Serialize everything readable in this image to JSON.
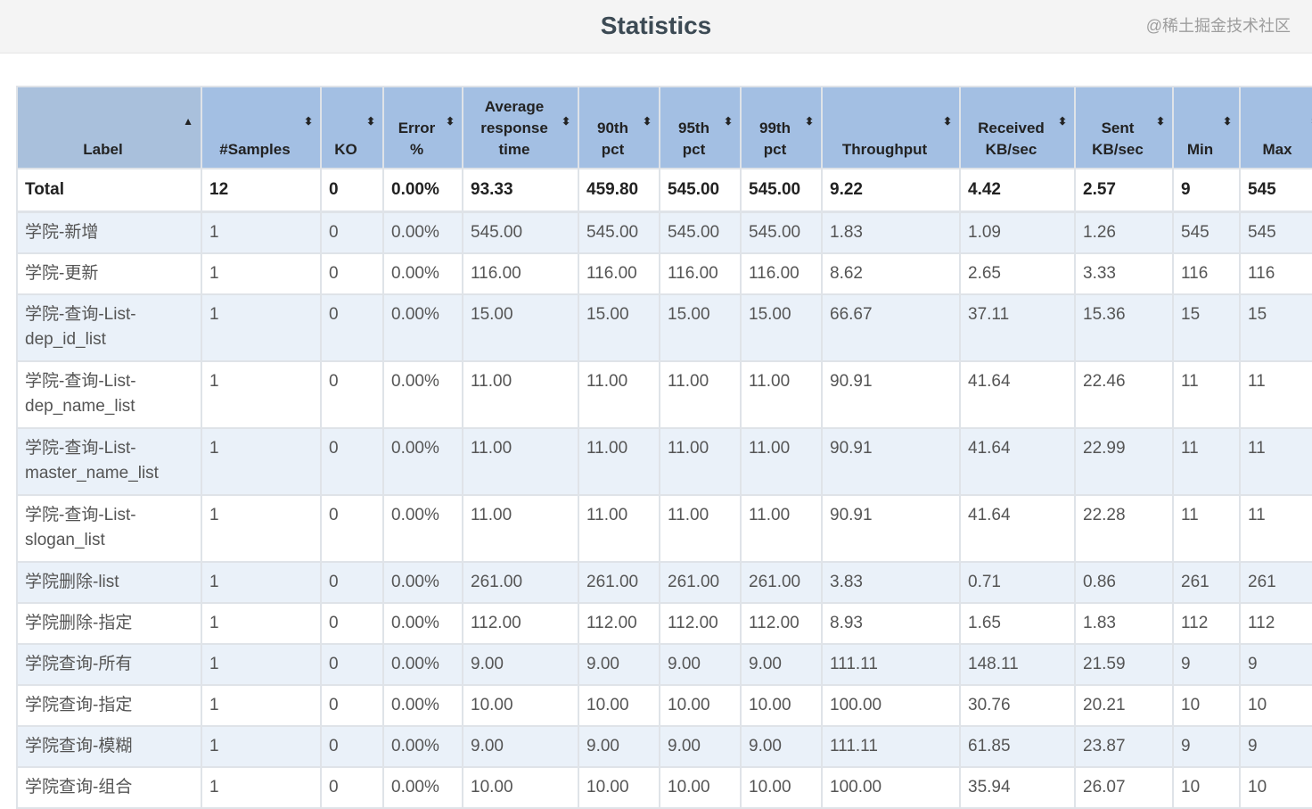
{
  "title": "Statistics",
  "columns": [
    {
      "label": "Label",
      "sort": "▲"
    },
    {
      "label": "#Samples",
      "sort": "⬍"
    },
    {
      "label": "KO",
      "sort": "⬍"
    },
    {
      "label": "Error %",
      "sort": "⬍"
    },
    {
      "label": "Average response time",
      "sort": "⬍"
    },
    {
      "label": "90th pct",
      "sort": "⬍"
    },
    {
      "label": "95th pct",
      "sort": "⬍"
    },
    {
      "label": "99th pct",
      "sort": "⬍"
    },
    {
      "label": "Throughput",
      "sort": "⬍"
    },
    {
      "label": "Received KB/sec",
      "sort": "⬍"
    },
    {
      "label": "Sent KB/sec",
      "sort": "⬍"
    },
    {
      "label": "Min",
      "sort": "⬍"
    },
    {
      "label": "Max",
      "sort": "⬍"
    }
  ],
  "total": [
    "Total",
    "12",
    "0",
    "0.00%",
    "93.33",
    "459.80",
    "545.00",
    "545.00",
    "9.22",
    "4.42",
    "2.57",
    "9",
    "545"
  ],
  "rows": [
    [
      "学院-新增",
      "1",
      "0",
      "0.00%",
      "545.00",
      "545.00",
      "545.00",
      "545.00",
      "1.83",
      "1.09",
      "1.26",
      "545",
      "545"
    ],
    [
      "学院-更新",
      "1",
      "0",
      "0.00%",
      "116.00",
      "116.00",
      "116.00",
      "116.00",
      "8.62",
      "2.65",
      "3.33",
      "116",
      "116"
    ],
    [
      "学院-查询-List-dep_id_list",
      "1",
      "0",
      "0.00%",
      "15.00",
      "15.00",
      "15.00",
      "15.00",
      "66.67",
      "37.11",
      "15.36",
      "15",
      "15"
    ],
    [
      "学院-查询-List-dep_name_list",
      "1",
      "0",
      "0.00%",
      "11.00",
      "11.00",
      "11.00",
      "11.00",
      "90.91",
      "41.64",
      "22.46",
      "11",
      "11"
    ],
    [
      "学院-查询-List-master_name_list",
      "1",
      "0",
      "0.00%",
      "11.00",
      "11.00",
      "11.00",
      "11.00",
      "90.91",
      "41.64",
      "22.99",
      "11",
      "11"
    ],
    [
      "学院-查询-List-slogan_list",
      "1",
      "0",
      "0.00%",
      "11.00",
      "11.00",
      "11.00",
      "11.00",
      "90.91",
      "41.64",
      "22.28",
      "11",
      "11"
    ],
    [
      "学院删除-list",
      "1",
      "0",
      "0.00%",
      "261.00",
      "261.00",
      "261.00",
      "261.00",
      "3.83",
      "0.71",
      "0.86",
      "261",
      "261"
    ],
    [
      "学院删除-指定",
      "1",
      "0",
      "0.00%",
      "112.00",
      "112.00",
      "112.00",
      "112.00",
      "8.93",
      "1.65",
      "1.83",
      "112",
      "112"
    ],
    [
      "学院查询-所有",
      "1",
      "0",
      "0.00%",
      "9.00",
      "9.00",
      "9.00",
      "9.00",
      "111.11",
      "148.11",
      "21.59",
      "9",
      "9"
    ],
    [
      "学院查询-指定",
      "1",
      "0",
      "0.00%",
      "10.00",
      "10.00",
      "10.00",
      "10.00",
      "100.00",
      "30.76",
      "20.21",
      "10",
      "10"
    ],
    [
      "学院查询-模糊",
      "1",
      "0",
      "0.00%",
      "9.00",
      "9.00",
      "9.00",
      "9.00",
      "111.11",
      "61.85",
      "23.87",
      "9",
      "9"
    ],
    [
      "学院查询-组合",
      "1",
      "0",
      "0.00%",
      "10.00",
      "10.00",
      "10.00",
      "10.00",
      "100.00",
      "35.94",
      "26.07",
      "10",
      "10"
    ]
  ],
  "watermark": "@稀土掘金技术社区"
}
